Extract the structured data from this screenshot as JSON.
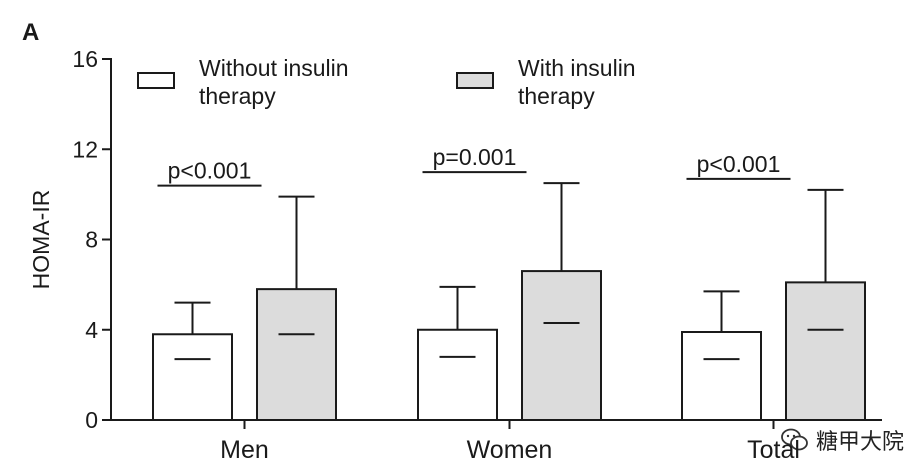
{
  "panel_label": "A",
  "chart_data": {
    "type": "bar",
    "categories": [
      "Men",
      "Women",
      "Total"
    ],
    "ylabel": "HOMA-IR",
    "ylim": [
      0,
      16
    ],
    "yticks": [
      0,
      4,
      8,
      12,
      16
    ],
    "series": [
      {
        "name": "Without insulin therapy",
        "legend_lines": [
          "Without insulin",
          "therapy"
        ],
        "color": "#ffffff",
        "values": [
          3.8,
          4.0,
          3.9
        ],
        "err_low": [
          2.7,
          2.8,
          2.7
        ],
        "err_high": [
          5.2,
          5.9,
          5.7
        ]
      },
      {
        "name": "With insulin therapy",
        "legend_lines": [
          "With insulin",
          "therapy"
        ],
        "color": "#dcdcdc",
        "values": [
          5.8,
          6.6,
          6.1
        ],
        "err_low": [
          3.8,
          4.3,
          4.0
        ],
        "err_high": [
          9.9,
          10.5,
          10.2
        ]
      }
    ],
    "annotations": [
      "p<0.001",
      "p=0.001",
      "p<0.001"
    ],
    "legend_position": "top",
    "grid": false
  },
  "watermark": {
    "text": "糖甲大院",
    "icon": "wechat-icon"
  }
}
